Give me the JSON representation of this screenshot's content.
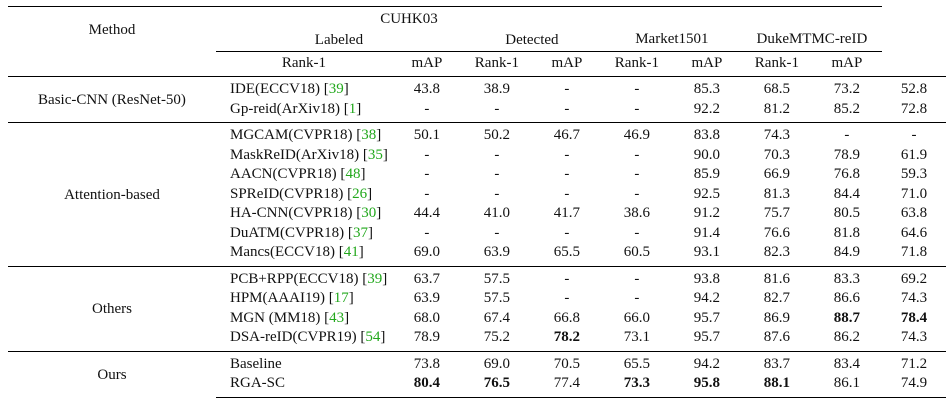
{
  "headers": {
    "method": "Method",
    "cuhk": "CUHK03",
    "labeled": "Labeled",
    "detected": "Detected",
    "market": "Market1501",
    "duke": "DukeMTMC-reID",
    "metrics": [
      "Rank-1",
      "mAP",
      "Rank-1",
      "mAP",
      "Rank-1",
      "mAP",
      "Rank-1",
      "mAP"
    ]
  },
  "groups": [
    {
      "name": "Basic-CNN (ResNet-50)",
      "rows": [
        {
          "method": "IDE(ECCV18) [",
          "cite": "39",
          "close": "]",
          "values": [
            "43.8",
            "38.9",
            "-",
            "-",
            "85.3",
            "68.5",
            "73.2",
            "52.8"
          ],
          "bold": []
        },
        {
          "method": "Gp-reid(ArXiv18) [",
          "cite": "1",
          "close": "]",
          "values": [
            "-",
            "-",
            "-",
            "-",
            "92.2",
            "81.2",
            "85.2",
            "72.8"
          ],
          "bold": []
        }
      ]
    },
    {
      "name": "Attention-based",
      "rows": [
        {
          "method": "MGCAM(CVPR18) [",
          "cite": "38",
          "close": "]",
          "values": [
            "50.1",
            "50.2",
            "46.7",
            "46.9",
            "83.8",
            "74.3",
            "-",
            "-"
          ],
          "bold": []
        },
        {
          "method": "MaskReID(ArXiv18) [",
          "cite": "35",
          "close": "]",
          "values": [
            "-",
            "-",
            "-",
            "-",
            "90.0",
            "70.3",
            "78.9",
            "61.9"
          ],
          "bold": []
        },
        {
          "method": "AACN(CVPR18) [",
          "cite": "48",
          "close": "]",
          "values": [
            "-",
            "-",
            "-",
            "-",
            "85.9",
            "66.9",
            "76.8",
            "59.3"
          ],
          "bold": []
        },
        {
          "method": "SPReID(CVPR18) [",
          "cite": "26",
          "close": "]",
          "values": [
            "-",
            "-",
            "-",
            "-",
            "92.5",
            "81.3",
            "84.4",
            "71.0"
          ],
          "bold": []
        },
        {
          "method": "HA-CNN(CVPR18) [",
          "cite": "30",
          "close": "]",
          "values": [
            "44.4",
            "41.0",
            "41.7",
            "38.6",
            "91.2",
            "75.7",
            "80.5",
            "63.8"
          ],
          "bold": []
        },
        {
          "method": "DuATM(CVPR18) [",
          "cite": "37",
          "close": "]",
          "values": [
            "-",
            "-",
            "-",
            "-",
            "91.4",
            "76.6",
            "81.8",
            "64.6"
          ],
          "bold": []
        },
        {
          "method": "Mancs(ECCV18) [",
          "cite": "41",
          "close": "]",
          "values": [
            "69.0",
            "63.9",
            "65.5",
            "60.5",
            "93.1",
            "82.3",
            "84.9",
            "71.8"
          ],
          "bold": []
        }
      ]
    },
    {
      "name": "Others",
      "rows": [
        {
          "method": "PCB+RPP(ECCV18) [",
          "cite": "39",
          "close": "]",
          "values": [
            "63.7",
            "57.5",
            "-",
            "-",
            "93.8",
            "81.6",
            "83.3",
            "69.2"
          ],
          "bold": []
        },
        {
          "method": "HPM(AAAI19) [",
          "cite": "17",
          "close": "]",
          "values": [
            "63.9",
            "57.5",
            "-",
            "-",
            "94.2",
            "82.7",
            "86.6",
            "74.3"
          ],
          "bold": []
        },
        {
          "method": "MGN (MM18) [",
          "cite": "43",
          "close": "]",
          "values": [
            "68.0",
            "67.4",
            "66.8",
            "66.0",
            "95.7",
            "86.9",
            "88.7",
            "78.4"
          ],
          "bold": [
            6,
            7
          ]
        },
        {
          "method": "DSA-reID(CVPR19) [",
          "cite": "54",
          "close": "]",
          "values": [
            "78.9",
            "75.2",
            "78.2",
            "73.1",
            "95.7",
            "87.6",
            "86.2",
            "74.3"
          ],
          "bold": [
            2
          ]
        }
      ]
    },
    {
      "name": "Ours",
      "rows": [
        {
          "method": "Baseline",
          "cite": "",
          "close": "",
          "values": [
            "73.8",
            "69.0",
            "70.5",
            "65.5",
            "94.2",
            "83.7",
            "83.4",
            "71.2"
          ],
          "bold": []
        },
        {
          "method": "RGA-SC",
          "cite": "",
          "close": "",
          "values": [
            "80.4",
            "76.5",
            "77.4",
            "73.3",
            "95.8",
            "88.1",
            "86.1",
            "74.9"
          ],
          "bold": [
            0,
            1,
            3,
            4,
            5
          ]
        }
      ]
    }
  ]
}
